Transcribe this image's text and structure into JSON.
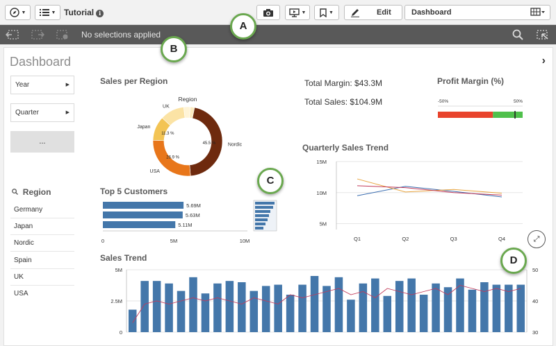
{
  "toolbar": {
    "app_title": "Tutorial",
    "info_icon": "info-icon",
    "edit_label": "Edit",
    "sheet_selector_value": "Dashboard"
  },
  "selections": {
    "status": "No selections applied"
  },
  "sheet": {
    "title": "Dashboard",
    "filters": [
      {
        "label": "Year"
      },
      {
        "label": "Quarter"
      }
    ],
    "more_label": "...",
    "region_listbox": {
      "title": "Region",
      "items": [
        "Germany",
        "Japan",
        "Nordic",
        "Spain",
        "UK",
        "USA"
      ]
    }
  },
  "kpis": {
    "total_margin": "Total Margin: $43.3M",
    "total_sales": "Total Sales: $104.9M"
  },
  "callouts": [
    "A",
    "B",
    "C",
    "D"
  ],
  "colors": {
    "accent_green": "#6aa84f",
    "bar_blue": "#4477aa",
    "donut_dark": "#6e2a0e",
    "donut_orange": "#e8761a",
    "donut_yellow": "#f3c454",
    "donut_light": "#fbe3a5",
    "gauge_red": "#e8432c",
    "gauge_green": "#4fc04b"
  },
  "chart_data": [
    {
      "id": "sales_per_region",
      "type": "pie",
      "title": "Sales per Region",
      "legend_title": "Region",
      "slices": [
        {
          "label": "Nordic",
          "value": 45.5,
          "value_label": "45.5 %",
          "color": "#6e2a0e"
        },
        {
          "label": "USA",
          "value": 26.9,
          "value_label": "26.9 %",
          "color": "#e8761a"
        },
        {
          "label": "Japan",
          "value": 11.3,
          "value_label": "11.3 %",
          "color": "#f3c454"
        },
        {
          "label": "UK",
          "value": 11.3,
          "value_label": "",
          "color": "#fbe3a5"
        },
        {
          "label": "",
          "value": 3.0,
          "value_label": "",
          "color": "#fff4d6"
        },
        {
          "label": "",
          "value": 2.0,
          "value_label": "",
          "color": "#fdebc0"
        }
      ]
    },
    {
      "id": "profit_margin",
      "type": "bar",
      "title": "Profit Margin (%)",
      "min_label": "-50%",
      "max_label": "50%",
      "range": [
        -50,
        50
      ],
      "segments": [
        {
          "from": -50,
          "to": 15,
          "color": "#e8432c"
        },
        {
          "from": 15,
          "to": 50,
          "color": "#4fc04b"
        }
      ],
      "value": 41
    },
    {
      "id": "top5_customers",
      "type": "bar",
      "title": "Top 5 Customers",
      "orientation": "horizontal",
      "categories": [
        "",
        "",
        ""
      ],
      "values": [
        5.69,
        5.63,
        5.11
      ],
      "value_labels": [
        "5.69M",
        "5.63M",
        "5.11M"
      ],
      "x_ticks": [
        "0",
        "5M",
        "10M"
      ],
      "xlim": [
        0,
        10
      ]
    },
    {
      "id": "quarterly_sales_trend",
      "type": "line",
      "title": "Quarterly Sales Trend",
      "categories": [
        "Q1",
        "Q2",
        "Q3",
        "Q4"
      ],
      "y_ticks": [
        "15M",
        "10M",
        "5M"
      ],
      "ylim": [
        4.5,
        15
      ],
      "series": [
        {
          "color": "#3a6db0",
          "values": [
            9.5,
            11.0,
            10.2,
            9.3
          ]
        },
        {
          "color": "#e8a33c",
          "values": [
            12.2,
            10.1,
            10.5,
            9.9
          ]
        },
        {
          "color": "#c23b5a",
          "values": [
            11.1,
            10.8,
            10.0,
            9.6
          ]
        }
      ]
    },
    {
      "id": "sales_trend",
      "type": "bar",
      "title": "Sales Trend",
      "y_ticks_left": [
        "5M",
        "2.5M",
        "0"
      ],
      "y_ticks_right": [
        "50",
        "40",
        "30"
      ],
      "ylim": [
        0,
        5
      ],
      "ylim_right": [
        30,
        50
      ],
      "values": [
        1.8,
        4.1,
        4.1,
        3.9,
        3.3,
        4.4,
        3.1,
        3.9,
        4.1,
        4.0,
        3.3,
        3.7,
        3.8,
        3.0,
        3.8,
        4.5,
        3.7,
        4.4,
        2.6,
        3.9,
        4.3,
        2.9,
        4.1,
        4.3,
        3.0,
        3.9,
        3.6,
        4.3,
        3.4,
        4.0,
        3.8,
        3.8,
        3.8
      ],
      "line_values": [
        33,
        39,
        40,
        39,
        40,
        41,
        40,
        41,
        40,
        39,
        41,
        40,
        39,
        42,
        41,
        42,
        43,
        44,
        42,
        43,
        41,
        44,
        43,
        42,
        43,
        44,
        42,
        45,
        44,
        43,
        44,
        43,
        44
      ]
    }
  ]
}
